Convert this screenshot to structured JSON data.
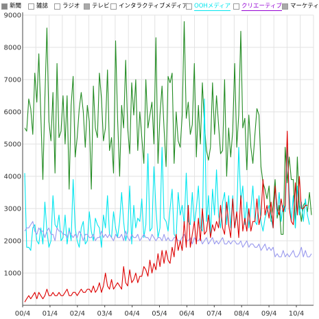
{
  "legend": [
    {
      "label": "新聞",
      "color": "#000000",
      "box": "#888888"
    },
    {
      "label": "雑誌",
      "color": "#000000",
      "box": "#ffffff"
    },
    {
      "label": "ラジオ",
      "color": "#000000",
      "box": "#ffffff"
    },
    {
      "label": "テレビ",
      "color": "#000000",
      "box": "#aaaaaa"
    },
    {
      "label": "インタラクティブメディア",
      "color": "#000000",
      "box": "#ffffff"
    },
    {
      "label": "OOHメディア",
      "color": "#00e5ee",
      "box": "#ffffff"
    },
    {
      "label": "クリエーティブ",
      "color": "#9400d3",
      "box": "#ffffff"
    },
    {
      "label": "マーケティング",
      "color": "#000000",
      "box": "#aaaaaa"
    }
  ],
  "chart_data": {
    "type": "line",
    "x_tick_labels": [
      "00/4",
      "01/4",
      "02/4",
      "03/4",
      "04/4",
      "05/4",
      "06/4",
      "07/4",
      "08/4",
      "09/4",
      "10/4"
    ],
    "ylim": [
      0,
      9000
    ],
    "y_ticks": [
      1000,
      2000,
      3000,
      4000,
      5000,
      6000,
      7000,
      8000,
      9000
    ],
    "grid": true,
    "series": [
      {
        "color": "#228b22",
        "values": [
          5500,
          5400,
          6400,
          6100,
          5300,
          7200,
          6300,
          7800,
          5900,
          3900,
          6400,
          8600,
          5700,
          5100,
          6600,
          4100,
          7500,
          5200,
          5400,
          6500,
          5000,
          6500,
          3600,
          6200,
          7100,
          4600,
          5200,
          6100,
          6600,
          6000,
          4900,
          6200,
          5700,
          3600,
          6800,
          5500,
          5200,
          7200,
          6400,
          5100,
          5500,
          7300,
          4800,
          5200,
          4100,
          8200,
          5800,
          4000,
          6200,
          5500,
          7600,
          5500,
          4700,
          6900,
          5900,
          7000,
          4800,
          6000,
          5200,
          4400,
          7000,
          5500,
          5900,
          6300,
          5000,
          8300,
          4400,
          5900,
          6800,
          5500,
          4300,
          7100,
          6900,
          7200,
          4400,
          6000,
          5100,
          4900,
          5900,
          8800,
          5800,
          6300,
          5300,
          5600,
          7500,
          4600,
          6200,
          5000,
          6900,
          5600,
          4800,
          4500,
          4900,
          6900,
          5300,
          6500,
          5600,
          4700,
          4800,
          7000,
          4000,
          5500,
          4600,
          5400,
          7500,
          4900,
          5900,
          8500,
          5500,
          5800,
          4200,
          5900,
          4900,
          4400,
          5300,
          6100,
          5900,
          4300,
          3800,
          3600,
          3300,
          3700,
          2600,
          3100,
          3900,
          2700,
          3100,
          2200,
          2200,
          4900,
          3800,
          4600,
          3900,
          3900,
          2400,
          4600,
          3100,
          2600,
          3100,
          3200,
          2900,
          3500,
          2800
        ]
      },
      {
        "color": "#00e5ee",
        "values": [
          4100,
          1800,
          1800,
          1700,
          2400,
          2500,
          2000,
          1900,
          2400,
          1900,
          3200,
          2300,
          1800,
          2000,
          3400,
          2500,
          2400,
          2800,
          2000,
          2100,
          2800,
          1900,
          2400,
          2000,
          3900,
          2400,
          2000,
          1800,
          2400,
          2600,
          1900,
          2000,
          2900,
          2300,
          2000,
          2700,
          2500,
          2400,
          1800,
          2800,
          2400,
          3400,
          2200,
          2100,
          2900,
          2400,
          2100,
          2600,
          3500,
          2600,
          2000,
          2300,
          3700,
          1900,
          3100,
          2400,
          2700,
          2600,
          3300,
          2100,
          2500,
          4700,
          2300,
          2400,
          4300,
          3000,
          2100,
          2400,
          4900,
          2700,
          2600,
          2300,
          3000,
          3600,
          2200,
          2100,
          3500,
          2800,
          3100,
          2500,
          4100,
          2600,
          2500,
          3500,
          2500,
          3000,
          3700,
          2400,
          2300,
          6400,
          2600,
          3400,
          2200,
          3600,
          2800,
          4200,
          2800,
          2400,
          3200,
          3500,
          2500,
          3400,
          2400,
          3400,
          2400,
          2800,
          4900,
          3200,
          3700,
          2500,
          3200,
          2400,
          3000,
          3700,
          2600,
          2500,
          3400,
          2600,
          2300,
          2700,
          2900,
          3100,
          2700,
          2400,
          3700,
          2800,
          3500,
          2600,
          3100,
          2900,
          4900,
          3500,
          2600,
          3400,
          2400,
          3700,
          2800,
          3200,
          2600,
          3300,
          2800,
          2500
        ]
      },
      {
        "color": "#9999ee",
        "values": [
          2300,
          2400,
          2400,
          2500,
          2600,
          2300,
          2200,
          2400,
          2300,
          2300,
          2100,
          2300,
          2400,
          2200,
          2200,
          2000,
          2400,
          2300,
          2300,
          2200,
          2200,
          2100,
          2300,
          2200,
          2100,
          2200,
          2100,
          2300,
          2200,
          2000,
          2200,
          2200,
          2100,
          2100,
          2200,
          2000,
          2100,
          2100,
          2300,
          2100,
          2200,
          2100,
          2200,
          2100,
          2000,
          2200,
          2100,
          2100,
          2200,
          2000,
          2300,
          2100,
          2000,
          2200,
          2100,
          2100,
          2200,
          2000,
          2100,
          2200,
          2100,
          2100,
          2000,
          2200,
          2100,
          2000,
          2100,
          2100,
          2000,
          2200,
          2000,
          2100,
          2000,
          2000,
          2100,
          2100,
          2000,
          2000,
          2100,
          2200,
          2000,
          2000,
          2100,
          1900,
          2100,
          2000,
          2000,
          2100,
          1900,
          2000,
          2100,
          1900,
          2000,
          2100,
          1900,
          2000,
          1900,
          2000,
          2100,
          1900,
          1900,
          2000,
          1900,
          2000,
          2000,
          1900,
          1900,
          2000,
          1800,
          1900,
          2000,
          1800,
          1900,
          1900,
          1800,
          1800,
          1900,
          1700,
          1800,
          1900,
          1700,
          1800,
          1700,
          1800,
          1500,
          1600,
          1500,
          1500,
          1700,
          1500,
          1600,
          1500,
          1600,
          1700,
          1500,
          1500,
          1600,
          1800,
          1500,
          1700,
          1500,
          1500,
          1600
        ]
      },
      {
        "color": "#dd0000",
        "values": [
          100,
          200,
          300,
          200,
          300,
          400,
          200,
          400,
          300,
          200,
          300,
          500,
          300,
          300,
          400,
          300,
          300,
          400,
          300,
          300,
          400,
          500,
          300,
          300,
          400,
          400,
          300,
          400,
          500,
          400,
          400,
          500,
          500,
          400,
          600,
          400,
          500,
          700,
          400,
          600,
          1000,
          600,
          500,
          800,
          500,
          600,
          700,
          600,
          500,
          1200,
          700,
          600,
          1100,
          700,
          800,
          1000,
          700,
          900,
          900,
          1200,
          1100,
          900,
          1400,
          1000,
          1300,
          1100,
          1600,
          1200,
          1700,
          1300,
          1700,
          1400,
          1300,
          1800,
          1500,
          2200,
          1700,
          2000,
          1700,
          2600,
          1800,
          3100,
          1800,
          2200,
          2600,
          1900,
          2700,
          2000,
          3000,
          2200,
          2300,
          2800,
          2100,
          2500,
          2300,
          2600,
          2400,
          3100,
          2400,
          2200,
          3200,
          2500,
          2100,
          3300,
          2400,
          2900,
          2100,
          3400,
          2300,
          2700,
          2300,
          3000,
          2300,
          2600,
          2600,
          3300,
          2500,
          2800,
          3900,
          2800,
          3100,
          2700,
          3200,
          2400,
          3700,
          3000,
          2800,
          3300,
          2900,
          3100,
          5400,
          3000,
          2600,
          2500,
          3800,
          2800,
          4000,
          3000,
          3000,
          3100,
          3100
        ]
      }
    ]
  }
}
